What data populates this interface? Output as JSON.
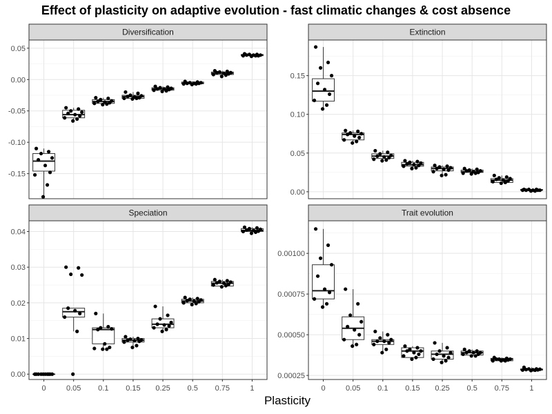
{
  "title": "Effect of plasticity on adaptive evolution - fast climatic changes & cost absence",
  "xlabel": "Plasticity",
  "chart_data": [
    {
      "type": "boxplot",
      "panel": "Diversification",
      "categories": [
        "0",
        "0.05",
        "0.1",
        "0.15",
        "0.25",
        "0.5",
        "0.75",
        "1"
      ],
      "yticks": [
        0.05,
        0.0,
        -0.05,
        -0.1,
        -0.15
      ],
      "ytick_labels": [
        "0.05",
        "0.00",
        "-0.05",
        "-0.10",
        "-0.15"
      ],
      "ylim": [
        -0.19,
        0.063
      ],
      "boxes": [
        {
          "min": -0.187,
          "q1": -0.146,
          "median": -0.13,
          "q3": -0.118,
          "max": -0.11
        },
        {
          "min": -0.066,
          "q1": -0.061,
          "median": -0.056,
          "q3": -0.049,
          "max": -0.045
        },
        {
          "min": -0.04,
          "q1": -0.038,
          "median": -0.035,
          "q3": -0.032,
          "max": -0.029
        },
        {
          "min": -0.031,
          "q1": -0.03,
          "median": -0.027,
          "q3": -0.025,
          "max": -0.02
        },
        {
          "min": -0.019,
          "q1": -0.017,
          "median": -0.015,
          "q3": -0.013,
          "max": -0.011
        },
        {
          "min": -0.008,
          "q1": -0.0065,
          "median": -0.006,
          "q3": -0.004,
          "max": -0.003
        },
        {
          "min": 0.005,
          "q1": 0.008,
          "median": 0.01,
          "q3": 0.012,
          "max": 0.014
        },
        {
          "min": 0.037,
          "q1": 0.038,
          "median": 0.039,
          "q3": 0.04,
          "max": 0.041
        }
      ],
      "points": [
        [
          -0.11,
          -0.115,
          -0.118,
          -0.125,
          -0.128,
          -0.137,
          -0.148,
          -0.152,
          -0.168,
          -0.187
        ],
        [
          -0.045,
          -0.047,
          -0.05,
          -0.052,
          -0.054,
          -0.056,
          -0.058,
          -0.061,
          -0.063,
          -0.066
        ],
        [
          -0.029,
          -0.03,
          -0.032,
          -0.034,
          -0.035,
          -0.036,
          -0.037,
          -0.038,
          -0.039,
          -0.04
        ],
        [
          -0.02,
          -0.022,
          -0.025,
          -0.026,
          -0.027,
          -0.028,
          -0.029,
          -0.03,
          -0.03,
          -0.031
        ],
        [
          -0.011,
          -0.012,
          -0.013,
          -0.014,
          -0.015,
          -0.015,
          -0.016,
          -0.017,
          -0.018,
          -0.019
        ],
        [
          -0.003,
          -0.004,
          -0.005,
          -0.005,
          -0.006,
          -0.006,
          -0.006,
          -0.007,
          -0.007,
          -0.008
        ],
        [
          0.014,
          0.013,
          0.012,
          0.011,
          0.011,
          0.01,
          0.009,
          0.008,
          0.007,
          0.005
        ],
        [
          0.041,
          0.04,
          0.04,
          0.039,
          0.039,
          0.039,
          0.038,
          0.038,
          0.038,
          0.037
        ]
      ]
    },
    {
      "type": "boxplot",
      "panel": "Extinction",
      "categories": [
        "0",
        "0.05",
        "0.1",
        "0.15",
        "0.25",
        "0.5",
        "0.75",
        "1"
      ],
      "yticks": [
        0.15,
        0.1,
        0.05,
        0.0
      ],
      "ytick_labels": [
        "0.15",
        "0.10",
        "0.05",
        "0.00"
      ],
      "ylim": [
        -0.009,
        0.196
      ],
      "boxes": [
        {
          "min": 0.107,
          "q1": 0.117,
          "median": 0.13,
          "q3": 0.146,
          "max": 0.187
        },
        {
          "min": 0.063,
          "q1": 0.067,
          "median": 0.074,
          "q3": 0.076,
          "max": 0.079
        },
        {
          "min": 0.04,
          "q1": 0.043,
          "median": 0.046,
          "q3": 0.049,
          "max": 0.053
        },
        {
          "min": 0.03,
          "q1": 0.033,
          "median": 0.035,
          "q3": 0.038,
          "max": 0.04
        },
        {
          "min": 0.021,
          "q1": 0.027,
          "median": 0.03,
          "q3": 0.032,
          "max": 0.034
        },
        {
          "min": 0.023,
          "q1": 0.025,
          "median": 0.026,
          "q3": 0.028,
          "max": 0.03
        },
        {
          "min": 0.011,
          "q1": 0.012,
          "median": 0.015,
          "q3": 0.017,
          "max": 0.021
        },
        {
          "min": 0.001,
          "q1": 0.002,
          "median": 0.002,
          "q3": 0.003,
          "max": 0.003
        }
      ],
      "points": [
        [
          0.187,
          0.167,
          0.16,
          0.15,
          0.14,
          0.132,
          0.126,
          0.118,
          0.112,
          0.107
        ],
        [
          0.079,
          0.078,
          0.076,
          0.075,
          0.074,
          0.072,
          0.07,
          0.067,
          0.065,
          0.063
        ],
        [
          0.053,
          0.051,
          0.049,
          0.047,
          0.046,
          0.045,
          0.044,
          0.042,
          0.041,
          0.04
        ],
        [
          0.04,
          0.039,
          0.038,
          0.037,
          0.036,
          0.035,
          0.034,
          0.033,
          0.031,
          0.03
        ],
        [
          0.034,
          0.033,
          0.032,
          0.031,
          0.03,
          0.029,
          0.028,
          0.026,
          0.022,
          0.021
        ],
        [
          0.03,
          0.029,
          0.028,
          0.027,
          0.027,
          0.026,
          0.025,
          0.024,
          0.024,
          0.023
        ],
        [
          0.021,
          0.019,
          0.018,
          0.017,
          0.016,
          0.015,
          0.014,
          0.013,
          0.012,
          0.011
        ],
        [
          0.003,
          0.003,
          0.003,
          0.002,
          0.002,
          0.002,
          0.002,
          0.002,
          0.001,
          0.001
        ]
      ]
    },
    {
      "type": "boxplot",
      "panel": "Speciation",
      "categories": [
        "0",
        "0.05",
        "0.1",
        "0.15",
        "0.25",
        "0.5",
        "0.75",
        "1"
      ],
      "yticks": [
        0.04,
        0.03,
        0.02,
        0.01,
        0.0
      ],
      "ytick_labels": [
        "0.04",
        "0.03",
        "0.02",
        "0.01",
        "0.00"
      ],
      "ylim": [
        -0.0015,
        0.043
      ],
      "boxes": [
        {
          "min": 0.0,
          "q1": 0.0,
          "median": 0.0,
          "q3": 0.0,
          "max": 0.0
        },
        {
          "min": 0.012,
          "q1": 0.016,
          "median": 0.0175,
          "q3": 0.0185,
          "max": 0.0185
        },
        {
          "min": 0.007,
          "q1": 0.0085,
          "median": 0.0125,
          "q3": 0.013,
          "max": 0.017
        },
        {
          "min": 0.0075,
          "q1": 0.009,
          "median": 0.0095,
          "q3": 0.01,
          "max": 0.0105
        },
        {
          "min": 0.012,
          "q1": 0.013,
          "median": 0.014,
          "q3": 0.0155,
          "max": 0.019
        },
        {
          "min": 0.0195,
          "q1": 0.02,
          "median": 0.0205,
          "q3": 0.021,
          "max": 0.0215
        },
        {
          "min": 0.0245,
          "q1": 0.0247,
          "median": 0.0255,
          "q3": 0.026,
          "max": 0.0265
        },
        {
          "min": 0.0395,
          "q1": 0.04,
          "median": 0.0403,
          "q3": 0.0408,
          "max": 0.0412
        }
      ],
      "points": [
        [
          0.0,
          0.0,
          0.0,
          0.0,
          0.0,
          0.0,
          0.0,
          0.0,
          0.0,
          0.0
        ],
        [
          0.03,
          0.0298,
          0.028,
          0.0278,
          0.0185,
          0.0178,
          0.017,
          0.016,
          0.012,
          0.0
        ],
        [
          0.017,
          0.0133,
          0.013,
          0.0127,
          0.0125,
          0.0085,
          0.0075,
          0.0072,
          0.007,
          0.007
        ],
        [
          0.0105,
          0.01,
          0.0098,
          0.0096,
          0.0095,
          0.0094,
          0.0092,
          0.009,
          0.008,
          0.0075
        ],
        [
          0.019,
          0.0165,
          0.0155,
          0.0145,
          0.014,
          0.0138,
          0.0135,
          0.013,
          0.0125,
          0.012
        ],
        [
          0.0215,
          0.0212,
          0.021,
          0.0208,
          0.0206,
          0.0205,
          0.0203,
          0.02,
          0.0198,
          0.0195
        ],
        [
          0.0265,
          0.0262,
          0.026,
          0.0258,
          0.0256,
          0.0255,
          0.0252,
          0.025,
          0.0248,
          0.0245
        ],
        [
          0.0412,
          0.041,
          0.0408,
          0.0406,
          0.0404,
          0.0403,
          0.0401,
          0.04,
          0.0398,
          0.0395
        ]
      ]
    },
    {
      "type": "boxplot",
      "panel": "Trait evolution",
      "categories": [
        "0",
        "0.05",
        "0.1",
        "0.15",
        "0.25",
        "0.5",
        "0.75",
        "1"
      ],
      "yticks": [
        0.001,
        0.00075,
        0.0005,
        0.00025
      ],
      "ytick_labels": [
        "0.00100",
        "0.00075",
        "0.00050",
        "0.00025"
      ],
      "ylim": [
        0.000225,
        0.0012
      ],
      "boxes": [
        {
          "min": 0.00067,
          "q1": 0.00072,
          "median": 0.00077,
          "q3": 0.00093,
          "max": 0.00115
        },
        {
          "min": 0.00043,
          "q1": 0.00047,
          "median": 0.00054,
          "q3": 0.00061,
          "max": 0.00078
        },
        {
          "min": 0.00039,
          "q1": 0.00044,
          "median": 0.00046,
          "q3": 0.00047,
          "max": 0.00052
        },
        {
          "min": 0.00035,
          "q1": 0.00036,
          "median": 0.0004,
          "q3": 0.00042,
          "max": 0.00043
        },
        {
          "min": 0.00033,
          "q1": 0.00035,
          "median": 0.00038,
          "q3": 0.0004,
          "max": 0.00045
        },
        {
          "min": 0.00037,
          "q1": 0.000375,
          "median": 0.00039,
          "q3": 0.0004,
          "max": 0.00041
        },
        {
          "min": 0.00034,
          "q1": 0.00034,
          "median": 0.00035,
          "q3": 0.000355,
          "max": 0.00036
        },
        {
          "min": 0.00028,
          "q1": 0.000283,
          "median": 0.000285,
          "q3": 0.00029,
          "max": 0.0003
        }
      ],
      "points": [
        [
          0.00115,
          0.00105,
          0.00097,
          0.00093,
          0.00086,
          0.00078,
          0.00076,
          0.00072,
          0.00069,
          0.00067
        ],
        [
          0.00078,
          0.00069,
          0.00062,
          0.00058,
          0.00055,
          0.00053,
          0.0005,
          0.00047,
          0.00044,
          0.00043
        ],
        [
          0.00052,
          0.0005,
          0.00048,
          0.00047,
          0.00046,
          0.00046,
          0.00045,
          0.00044,
          0.00041,
          0.00039
        ],
        [
          0.00043,
          0.00042,
          0.00041,
          0.0004,
          0.0004,
          0.00039,
          0.00038,
          0.00037,
          0.00036,
          0.00035
        ],
        [
          0.00045,
          0.00042,
          0.0004,
          0.00039,
          0.00038,
          0.00037,
          0.00036,
          0.00035,
          0.00034,
          0.00033
        ],
        [
          0.00041,
          0.0004,
          0.0004,
          0.00039,
          0.00039,
          0.00039,
          0.00038,
          0.00038,
          0.00037,
          0.00037
        ],
        [
          0.00036,
          0.000355,
          0.00035,
          0.00035,
          0.00035,
          0.000345,
          0.000345,
          0.00034,
          0.00034,
          0.00034
        ],
        [
          0.0003,
          0.00029,
          0.00029,
          0.000288,
          0.000286,
          0.000285,
          0.000284,
          0.000283,
          0.000282,
          0.00028
        ]
      ]
    }
  ]
}
